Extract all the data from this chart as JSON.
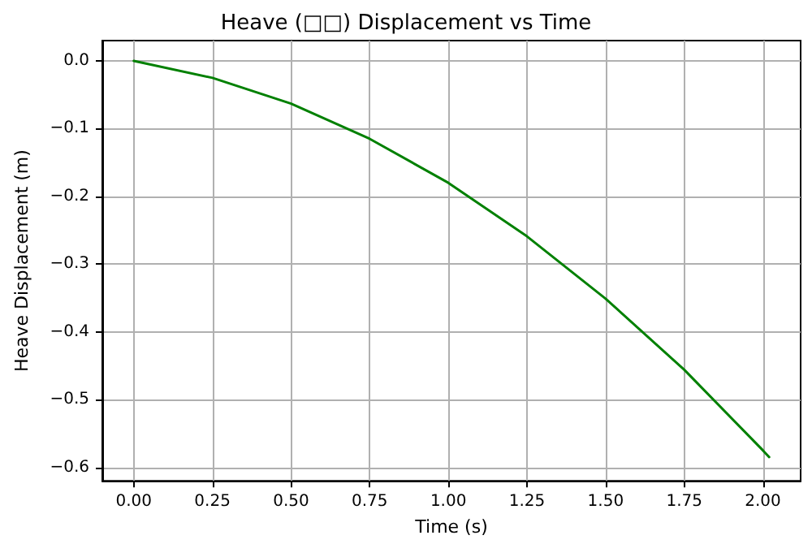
{
  "chart_data": {
    "type": "line",
    "title": "Heave (□□) Displacement vs Time",
    "xlabel": "Time (s)",
    "ylabel": "Heave Displacement (m)",
    "x": [
      0,
      0.25,
      0.5,
      0.75,
      1.0,
      1.25,
      1.5,
      1.75,
      2.0,
      2.02
    ],
    "series": [
      {
        "color": "#008000",
        "values": [
          0,
          -0.025,
          -0.063,
          -0.115,
          -0.18,
          -0.259,
          -0.351,
          -0.456,
          -0.575,
          -0.585
        ]
      }
    ],
    "xlim": [
      -0.1,
      2.12
    ],
    "xticks": [
      {
        "value": 0,
        "label": "0.00"
      },
      {
        "value": 0.25,
        "label": "0.25"
      },
      {
        "value": 0.5,
        "label": "0.50"
      },
      {
        "value": 0.75,
        "label": "0.75"
      },
      {
        "value": 1,
        "label": "1.00"
      },
      {
        "value": 1.25,
        "label": "1.25"
      },
      {
        "value": 1.5,
        "label": "1.50"
      },
      {
        "value": 1.75,
        "label": "1.75"
      },
      {
        "value": 2,
        "label": "2.00"
      }
    ],
    "ylim": [
      -0.62,
      0.03
    ],
    "yticks": [
      {
        "value": 0,
        "label": "0.0"
      },
      {
        "value": -0.1,
        "label": "−0.1"
      },
      {
        "value": -0.2,
        "label": "−0.2"
      },
      {
        "value": -0.3,
        "label": "−0.3"
      },
      {
        "value": -0.4,
        "label": "−0.4"
      },
      {
        "value": -0.5,
        "label": "−0.5"
      },
      {
        "value": -0.6,
        "label": "−0.6"
      }
    ],
    "grid": true,
    "marker": "none",
    "line_style": "solid"
  }
}
